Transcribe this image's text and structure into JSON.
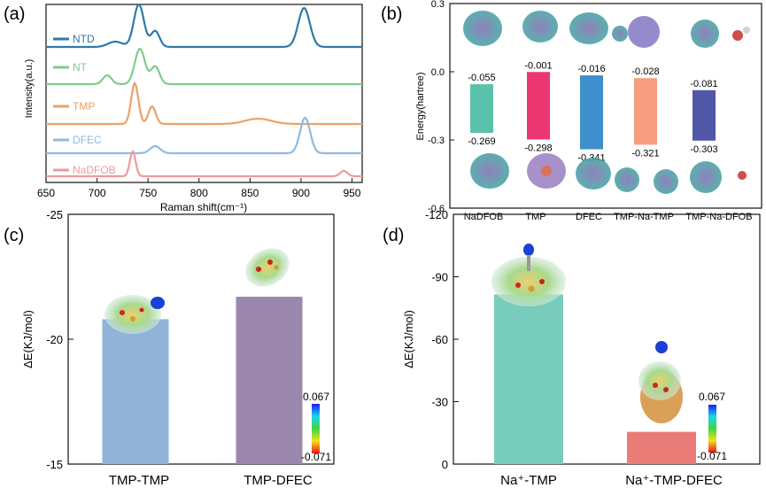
{
  "chart_data": [
    {
      "panel": "(a)",
      "type": "line",
      "xlabel": "Raman shift(cm⁻¹)",
      "ylabel": "Intensity(a.u.)",
      "xlim": [
        650,
        960
      ],
      "xticks": [
        650,
        700,
        750,
        800,
        850,
        900,
        950
      ],
      "grid": false,
      "series": [
        {
          "name": "NTD",
          "color": "#2f79a8",
          "baseline": 5,
          "peaks": [
            [
              718,
              6,
              10
            ],
            [
              741,
              48,
              7
            ],
            [
              757,
              18,
              6
            ],
            [
              903,
              44,
              8
            ]
          ]
        },
        {
          "name": "NT",
          "color": "#7fcc8d",
          "baseline": 4,
          "peaks": [
            [
              710,
              10,
              6
            ],
            [
              742,
              40,
              7
            ],
            [
              757,
              20,
              6
            ]
          ]
        },
        {
          "name": "TMP",
          "color": "#efa067",
          "baseline": 5,
          "peaks": [
            [
              737,
              46,
              5
            ],
            [
              754,
              20,
              5
            ],
            [
              858,
              6,
              18
            ]
          ]
        },
        {
          "name": "DFEC",
          "color": "#8dbbe0",
          "baseline": 3,
          "peaks": [
            [
              757,
              8,
              7
            ],
            [
              904,
              40,
              7
            ]
          ]
        },
        {
          "name": "NaDFOB",
          "color": "#f1999b",
          "baseline": 2,
          "peaks": [
            [
              735,
              28,
              4
            ],
            [
              942,
              6,
              5
            ]
          ]
        }
      ]
    },
    {
      "panel": "(b)",
      "type": "bar",
      "ylabel": "Energy(hartree)",
      "ylim": [
        -0.6,
        0.3
      ],
      "yticks": [
        "0.3",
        "0.0",
        "-0.3",
        "-0.6"
      ],
      "ytick_values": [
        0.3,
        0.0,
        -0.3,
        -0.6
      ],
      "categories": [
        "NaDFOB",
        "TMP",
        "DFEC",
        "TMP-Na-TMP",
        "TMP-Na-DFOB"
      ],
      "lumo": [
        -0.055,
        -0.001,
        -0.016,
        -0.028,
        -0.081
      ],
      "homo": [
        -0.269,
        -0.298,
        -0.341,
        -0.321,
        -0.303
      ],
      "lumo_labels": [
        "-0.055",
        "-0.001",
        "-0.016",
        "-0.028",
        "-0.081"
      ],
      "homo_labels": [
        "-0.269",
        "-0.298",
        "-0.341",
        "-0.321",
        "-0.303"
      ],
      "colors": [
        "#5cc1ac",
        "#ec3672",
        "#3e8fcc",
        "#f79d80",
        "#5157a8"
      ]
    },
    {
      "panel": "(c)",
      "type": "bar",
      "ylabel": "ΔE(KJ/mol)",
      "ylim": [
        -15,
        -25
      ],
      "yticks": [
        "-25",
        "-20",
        "-15"
      ],
      "ytick_values": [
        -25,
        -20,
        -15
      ],
      "categories": [
        "TMP-TMP",
        "TMP-DFEC"
      ],
      "values": [
        -20.8,
        -21.7
      ],
      "colors": [
        "#90b3d7",
        "#9b86ae"
      ],
      "colorbar": {
        "max": "0.067",
        "min": "-0.071"
      }
    },
    {
      "panel": "(d)",
      "type": "bar",
      "ylabel": "ΔE(KJ/mol)",
      "ylim": [
        0,
        -120
      ],
      "yticks": [
        "-120",
        "-90",
        "-60",
        "-30",
        "0"
      ],
      "ytick_values": [
        -120,
        -90,
        -60,
        -30,
        0
      ],
      "categories": [
        "Na⁺-TMP",
        "Na⁺-TMP-DFEC"
      ],
      "values": [
        -81.5,
        -15.5
      ],
      "colors": [
        "#77ccbb",
        "#ea7c78"
      ],
      "colorbar": {
        "max": "0.067",
        "min": "-0.071"
      }
    }
  ]
}
